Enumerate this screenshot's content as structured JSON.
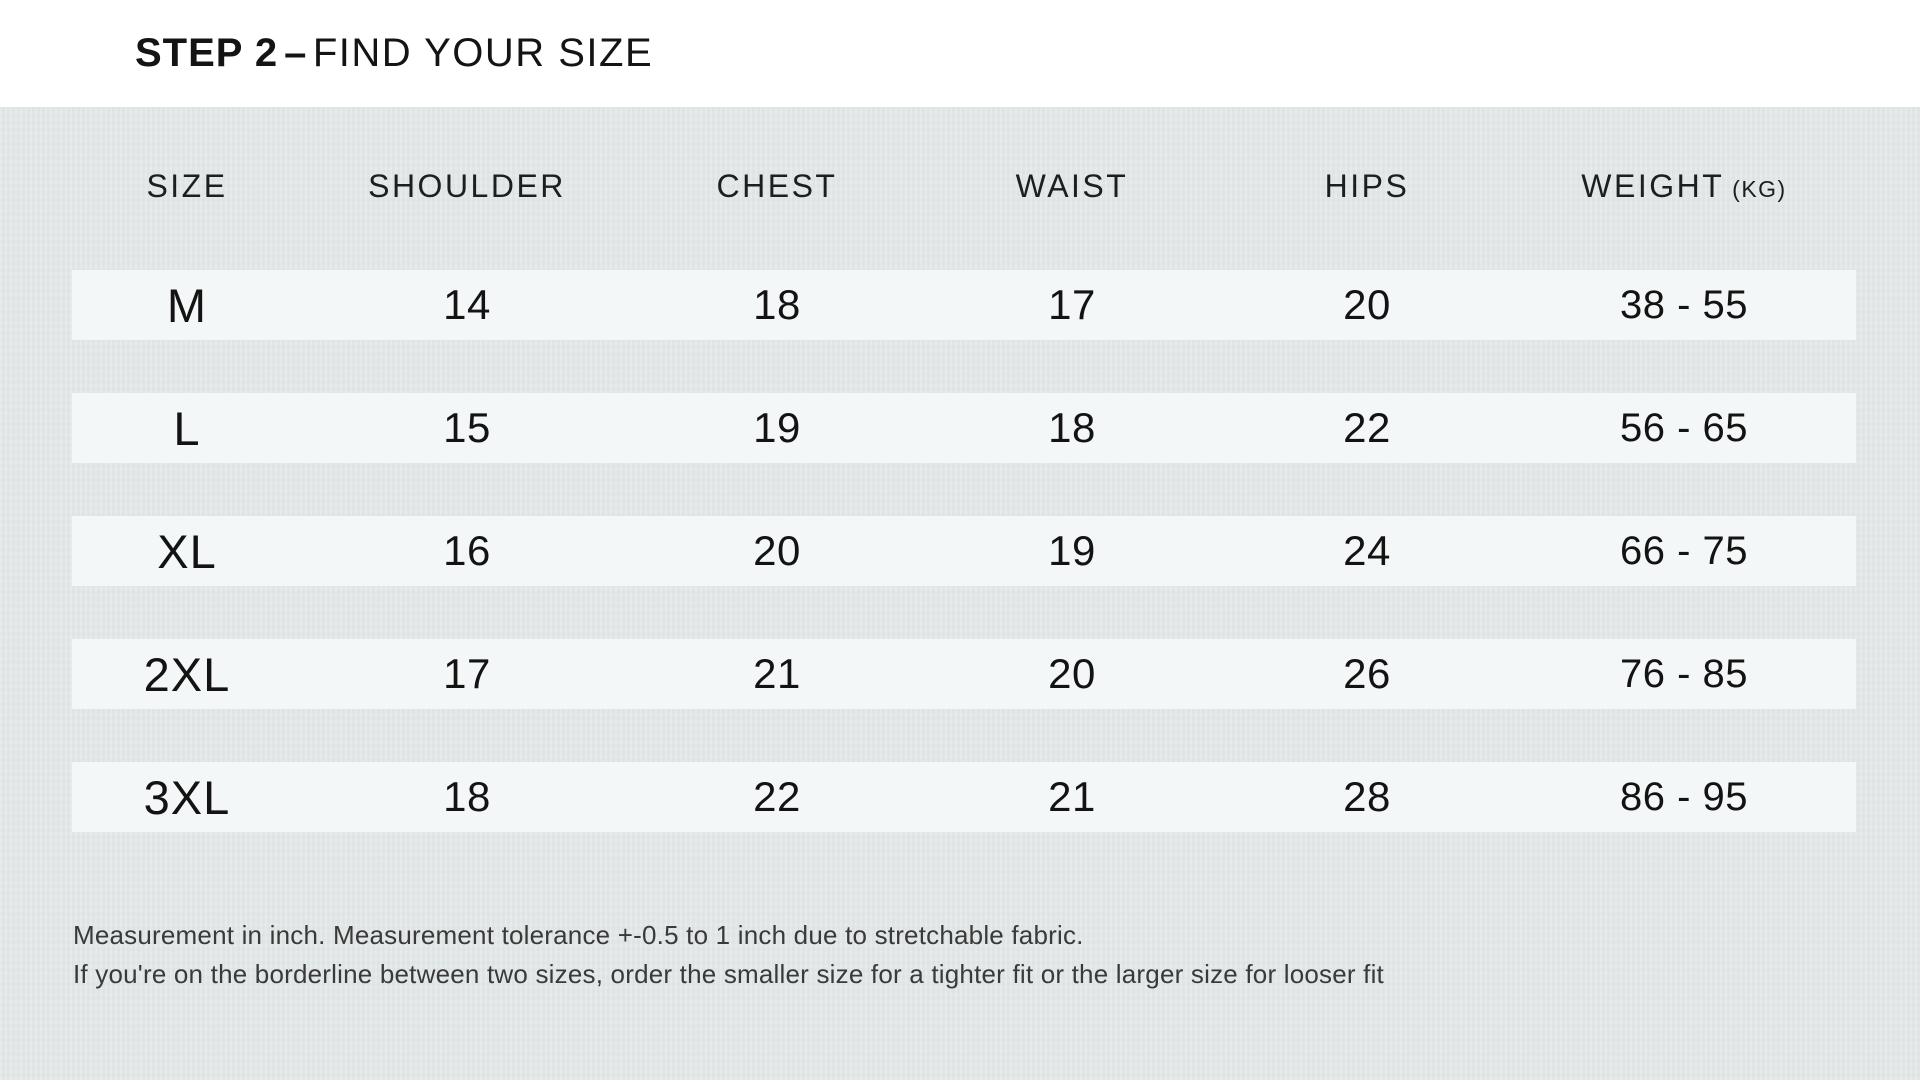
{
  "header": {
    "step_label": "STEP 2",
    "separator": "–",
    "title": "FIND YOUR SIZE"
  },
  "table": {
    "columns": [
      {
        "key": "size",
        "label": "SIZE"
      },
      {
        "key": "shoulder",
        "label": "SHOULDER"
      },
      {
        "key": "chest",
        "label": "CHEST"
      },
      {
        "key": "waist",
        "label": "WAIST"
      },
      {
        "key": "hips",
        "label": "HIPS"
      },
      {
        "key": "weight",
        "label": "WEIGHT",
        "unit": "(KG)"
      }
    ],
    "rows": [
      [
        "M",
        "14",
        "18",
        "17",
        "20",
        "38 - 55"
      ],
      [
        "L",
        "15",
        "19",
        "18",
        "22",
        "56 - 65"
      ],
      [
        "XL",
        "16",
        "20",
        "19",
        "24",
        "66 - 75"
      ],
      [
        "2XL",
        "17",
        "21",
        "20",
        "26",
        "76 - 85"
      ],
      [
        "3XL",
        "18",
        "22",
        "21",
        "28",
        "86 - 95"
      ]
    ],
    "measurement_unit_note": "inch"
  },
  "notes": {
    "line1": "Measurement in inch. Measurement tolerance +-0.5 to 1 inch due to stretchable fabric.",
    "line2": "If you're on the borderline between two sizes, order the smaller size for a tighter fit or the larger size for looser fit"
  },
  "colors": {
    "page_bg": "#e3e8e8",
    "band_bg": "#ffffff",
    "row_bg": "#f4f7f7",
    "text": "#161616",
    "note_text": "#3a3a3a"
  }
}
